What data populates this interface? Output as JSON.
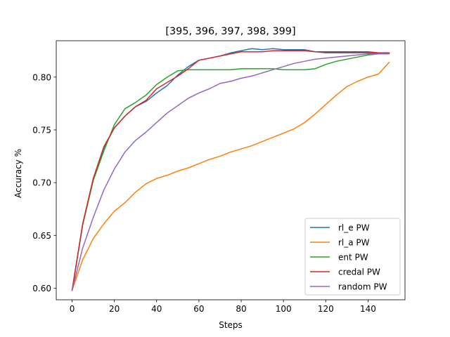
{
  "chart_data": {
    "type": "line",
    "title": "[395, 396, 397, 398, 399]",
    "xlabel": "Steps",
    "ylabel": "Accuracy %",
    "xlim": [
      -7.5,
      157.5
    ],
    "ylim": [
      0.589,
      0.8345
    ],
    "xticks": [
      0,
      20,
      40,
      60,
      80,
      100,
      120,
      140
    ],
    "yticks": [
      0.6,
      0.65,
      0.7,
      0.75,
      0.8
    ],
    "ytick_labels": [
      "0.60",
      "0.65",
      "0.70",
      "0.75",
      "0.80"
    ],
    "grid": false,
    "legend_position": "lower-right",
    "x": [
      0,
      5,
      10,
      15,
      20,
      25,
      30,
      35,
      40,
      45,
      50,
      55,
      60,
      65,
      70,
      75,
      80,
      85,
      90,
      95,
      100,
      105,
      110,
      115,
      120,
      125,
      130,
      135,
      140,
      145,
      150
    ],
    "series": [
      {
        "name": "rl_e PW",
        "color": "#1f77b4",
        "values": [
          0.598,
          0.66,
          0.703,
          0.733,
          0.752,
          0.763,
          0.772,
          0.777,
          0.785,
          0.792,
          0.802,
          0.81,
          0.816,
          0.818,
          0.82,
          0.823,
          0.825,
          0.827,
          0.826,
          0.827,
          0.826,
          0.826,
          0.826,
          0.824,
          0.823,
          0.823,
          0.823,
          0.823,
          0.823,
          0.823,
          0.823
        ]
      },
      {
        "name": "rl_a PW",
        "color": "#ff7f0e",
        "values": [
          0.598,
          0.627,
          0.647,
          0.661,
          0.673,
          0.681,
          0.691,
          0.699,
          0.704,
          0.707,
          0.711,
          0.714,
          0.718,
          0.722,
          0.725,
          0.729,
          0.732,
          0.735,
          0.739,
          0.743,
          0.747,
          0.751,
          0.757,
          0.765,
          0.774,
          0.783,
          0.791,
          0.796,
          0.8,
          0.803,
          0.814
        ]
      },
      {
        "name": "ent PW",
        "color": "#2ca02c",
        "values": [
          0.598,
          0.66,
          0.702,
          0.73,
          0.755,
          0.77,
          0.776,
          0.783,
          0.793,
          0.8,
          0.806,
          0.807,
          0.807,
          0.807,
          0.807,
          0.807,
          0.808,
          0.808,
          0.808,
          0.808,
          0.807,
          0.807,
          0.807,
          0.808,
          0.812,
          0.815,
          0.817,
          0.819,
          0.821,
          0.822,
          0.823
        ]
      },
      {
        "name": "credal PW",
        "color": "#d62728",
        "values": [
          0.598,
          0.661,
          0.704,
          0.734,
          0.752,
          0.763,
          0.772,
          0.778,
          0.789,
          0.795,
          0.801,
          0.808,
          0.816,
          0.818,
          0.82,
          0.822,
          0.824,
          0.824,
          0.824,
          0.825,
          0.825,
          0.825,
          0.825,
          0.824,
          0.824,
          0.824,
          0.824,
          0.824,
          0.824,
          0.823,
          0.823
        ]
      },
      {
        "name": "random PW",
        "color": "#9467bd",
        "values": [
          0.598,
          0.638,
          0.667,
          0.693,
          0.713,
          0.729,
          0.74,
          0.748,
          0.757,
          0.766,
          0.773,
          0.78,
          0.785,
          0.789,
          0.794,
          0.796,
          0.799,
          0.801,
          0.804,
          0.807,
          0.81,
          0.813,
          0.815,
          0.817,
          0.818,
          0.819,
          0.82,
          0.821,
          0.822,
          0.822,
          0.822
        ]
      }
    ]
  }
}
